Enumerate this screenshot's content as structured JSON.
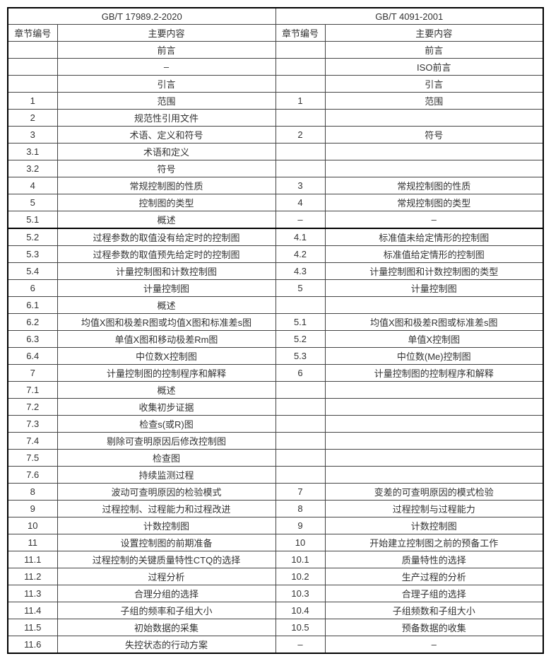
{
  "table": {
    "type": "table",
    "font_size_pt": 10,
    "text_color": "#333333",
    "border_color": "#444444",
    "background_color": "#ffffff",
    "col_widths_pct": [
      11,
      39,
      11,
      39
    ],
    "header_top": {
      "left": "GB/T 17989.2-2020",
      "right": "GB/T 4091-2001"
    },
    "header_sub": {
      "l_id": "章节编号",
      "l_content": "主要内容",
      "r_id": "章节编号",
      "r_content": "主要内容"
    },
    "rows": [
      {
        "l_id": "",
        "l_c": "前言",
        "r_id": "",
        "r_c": "前言"
      },
      {
        "l_id": "",
        "l_c": "–",
        "r_id": "",
        "r_c": "ISO前言"
      },
      {
        "l_id": "",
        "l_c": "引言",
        "r_id": "",
        "r_c": "引言"
      },
      {
        "l_id": "1",
        "l_c": "范围",
        "r_id": "1",
        "r_c": "范围"
      },
      {
        "l_id": "2",
        "l_c": "规范性引用文件",
        "r_id": "",
        "r_c": ""
      },
      {
        "l_id": "3",
        "l_c": "术语、定义和符号",
        "r_id": "2",
        "r_c": "符号"
      },
      {
        "l_id": "3.1",
        "l_c": "术语和定义",
        "r_id": "",
        "r_c": ""
      },
      {
        "l_id": "3.2",
        "l_c": "符号",
        "r_id": "",
        "r_c": ""
      },
      {
        "l_id": "4",
        "l_c": "常规控制图的性质",
        "r_id": "3",
        "r_c": "常规控制图的性质"
      },
      {
        "l_id": "5",
        "l_c": "控制图的类型",
        "r_id": "4",
        "r_c": "常规控制图的类型"
      },
      {
        "l_id": "5.1",
        "l_c": "概述",
        "r_id": "–",
        "r_c": "–"
      },
      {
        "l_id": "5.2",
        "l_c": "过程参数的取值没有给定时的控制图",
        "r_id": "4.1",
        "r_c": "标准值未给定情形的控制图"
      },
      {
        "l_id": "5.3",
        "l_c": "过程参数的取值预先给定时的控制图",
        "r_id": "4.2",
        "r_c": "标准值给定情形的控制图"
      },
      {
        "l_id": "5.4",
        "l_c": "计量控制图和计数控制图",
        "r_id": "4.3",
        "r_c": "计量控制图和计数控制图的类型"
      },
      {
        "l_id": "6",
        "l_c": "计量控制图",
        "r_id": "5",
        "r_c": "计量控制图"
      },
      {
        "l_id": "6.1",
        "l_c": "概述",
        "r_id": "",
        "r_c": ""
      },
      {
        "l_id": "6.2",
        "l_c": "均值X图和极差R图或均值X图和标准差s图",
        "r_id": "5.1",
        "r_c": "均值X图和极差R图或标准差s图"
      },
      {
        "l_id": "6.3",
        "l_c": "单值X图和移动极差Rm图",
        "r_id": "5.2",
        "r_c": "单值X控制图"
      },
      {
        "l_id": "6.4",
        "l_c": "中位数X控制图",
        "r_id": "5.3",
        "r_c": "中位数(Me)控制图"
      },
      {
        "l_id": "7",
        "l_c": "计量控制图的控制程序和解释",
        "r_id": "6",
        "r_c": "计量控制图的控制程序和解释"
      },
      {
        "l_id": "7.1",
        "l_c": "概述",
        "r_id": "",
        "r_c": ""
      },
      {
        "l_id": "7.2",
        "l_c": "收集初步证据",
        "r_id": "",
        "r_c": ""
      },
      {
        "l_id": "7.3",
        "l_c": "检查s(或R)图",
        "r_id": "",
        "r_c": ""
      },
      {
        "l_id": "7.4",
        "l_c": "剔除可查明原因后修改控制图",
        "r_id": "",
        "r_c": ""
      },
      {
        "l_id": "7.5",
        "l_c": "检查图",
        "r_id": "",
        "r_c": ""
      },
      {
        "l_id": "7.6",
        "l_c": "持续监测过程",
        "r_id": "",
        "r_c": ""
      },
      {
        "l_id": "8",
        "l_c": "波动可查明原因的检验模式",
        "r_id": "7",
        "r_c": "变差的可查明原因的模式检验"
      },
      {
        "l_id": "9",
        "l_c": "过程控制、过程能力和过程改进",
        "r_id": "8",
        "r_c": "过程控制与过程能力"
      },
      {
        "l_id": "10",
        "l_c": "计数控制图",
        "r_id": "9",
        "r_c": "计数控制图"
      },
      {
        "l_id": "11",
        "l_c": "设置控制图的前期准备",
        "r_id": "10",
        "r_c": "开始建立控制图之前的预备工作"
      },
      {
        "l_id": "11.1",
        "l_c": "过程控制的关键质量特性CTQ的选择",
        "r_id": "10.1",
        "r_c": "质量特性的选择"
      },
      {
        "l_id": "11.2",
        "l_c": "过程分析",
        "r_id": "10.2",
        "r_c": "生产过程的分析"
      },
      {
        "l_id": "11.3",
        "l_c": "合理分组的选择",
        "r_id": "10.3",
        "r_c": "合理子组的选择"
      },
      {
        "l_id": "11.4",
        "l_c": "子组的频率和子组大小",
        "r_id": "10.4",
        "r_c": "子组频数和子组大小"
      },
      {
        "l_id": "11.5",
        "l_c": "初始数据的采集",
        "r_id": "10.5",
        "r_c": "预备数据的收集"
      },
      {
        "l_id": "11.6",
        "l_c": "失控状态的行动方案",
        "r_id": "–",
        "r_c": "–"
      }
    ]
  }
}
